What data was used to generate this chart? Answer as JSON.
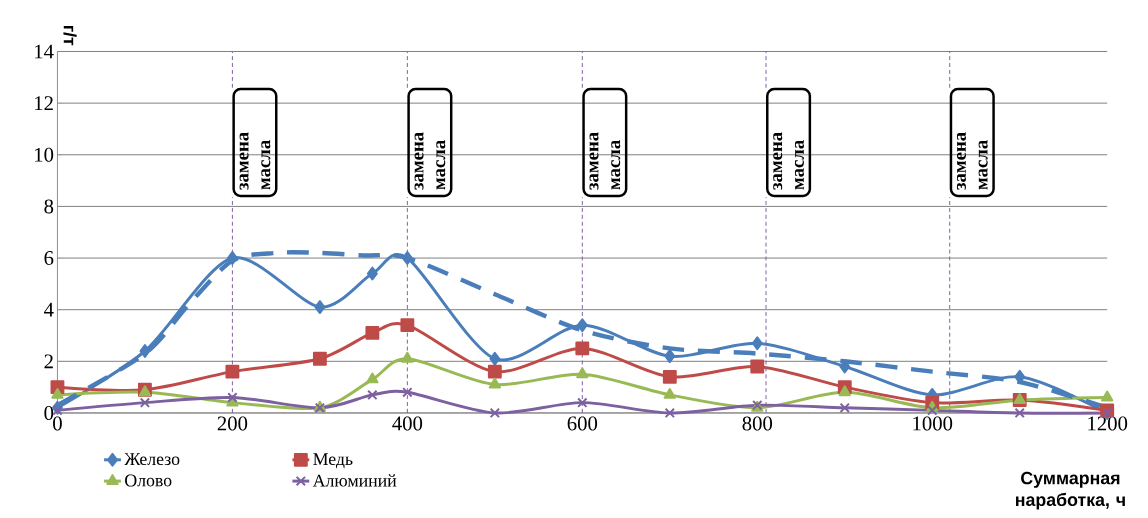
{
  "chart_data": {
    "type": "line",
    "xlabel": "Суммарная наработка, ч",
    "ylabel": "г/т",
    "x": [
      0,
      100,
      200,
      300,
      360,
      400,
      500,
      600,
      700,
      800,
      900,
      1000,
      1100,
      1200
    ],
    "series": [
      {
        "name": "Железо",
        "color": "#4a7ebb",
        "marker": "diamond",
        "line_style": "solid",
        "values": [
          0.2,
          2.4,
          6.0,
          4.1,
          5.4,
          6.0,
          2.1,
          3.4,
          2.2,
          2.7,
          1.8,
          0.7,
          1.4,
          0.0
        ]
      },
      {
        "name": "Медь",
        "color": "#be4b48",
        "marker": "square",
        "line_style": "solid",
        "values": [
          1.0,
          0.9,
          1.6,
          2.1,
          3.1,
          3.4,
          1.6,
          2.5,
          1.4,
          1.8,
          1.0,
          0.4,
          0.5,
          0.1
        ]
      },
      {
        "name": "Олово",
        "color": "#98b954",
        "marker": "triangle",
        "line_style": "solid",
        "values": [
          0.7,
          0.8,
          0.4,
          0.2,
          1.3,
          2.1,
          1.1,
          1.5,
          0.7,
          0.2,
          0.8,
          0.2,
          0.5,
          0.6
        ]
      },
      {
        "name": "Алюминий",
        "color": "#7d60a0",
        "marker": "cross",
        "line_style": "solid",
        "values": [
          0.1,
          0.4,
          0.6,
          0.2,
          0.7,
          0.8,
          0.0,
          0.4,
          0.0,
          0.3,
          0.2,
          0.1,
          0.0,
          0.0
        ]
      },
      {
        "type": "line",
        "color": "#4a7ebb",
        "marker": "none",
        "line_style": "dashed",
        "x": [
          0,
          100,
          150,
          200,
          250,
          300,
          350,
          400,
          500,
          600,
          700,
          800,
          900,
          1000,
          1100,
          1200
        ],
        "values": [
          0.3,
          2.3,
          4.2,
          5.9,
          6.2,
          6.2,
          6.1,
          6.0,
          4.6,
          3.2,
          2.5,
          2.3,
          2.0,
          1.6,
          1.2,
          0.2
        ]
      }
    ],
    "xlim": [
      0,
      1200
    ],
    "xticks": [
      0,
      200,
      400,
      600,
      800,
      1000,
      1200
    ],
    "ylim": [
      0,
      14
    ],
    "yticks": [
      0,
      2,
      4,
      6,
      8,
      10,
      12,
      14
    ],
    "grid": "y",
    "legend": "bottom",
    "ref_lines": [
      {
        "axis": "x",
        "value": 200,
        "label": "замена масла",
        "color": "#7d60a0",
        "line_style": "dashed"
      },
      {
        "axis": "x",
        "value": 400,
        "label": "замена масла",
        "color": "#7d60a0",
        "line_style": "dashed"
      },
      {
        "axis": "x",
        "value": 600,
        "label": "замена масла",
        "color": "#7d60a0",
        "line_style": "dashed"
      },
      {
        "axis": "x",
        "value": 810,
        "label": "замена масла",
        "color": "#7d60a0",
        "line_style": "dashed"
      },
      {
        "axis": "x",
        "value": 1020,
        "label": "замена масла",
        "color": "#7d60a0",
        "line_style": "dashed"
      }
    ]
  }
}
